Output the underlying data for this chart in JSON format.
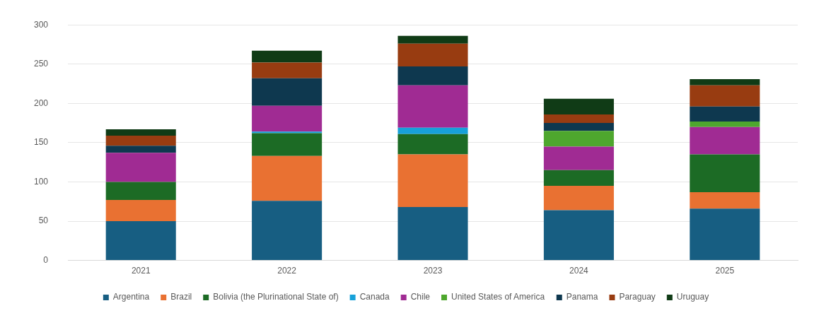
{
  "chart_data": {
    "type": "bar",
    "stacked": true,
    "categories": [
      "2021",
      "2022",
      "2023",
      "2024",
      "2025"
    ],
    "series": [
      {
        "name": "Argentina",
        "color": "#175e82",
        "values": [
          50,
          76,
          68,
          64,
          66
        ]
      },
      {
        "name": "Brazil",
        "color": "#e97132",
        "values": [
          27,
          57,
          67,
          31,
          21
        ]
      },
      {
        "name": "Bolivia (the Plurinational State of)",
        "color": "#1c6b25",
        "values": [
          23,
          29,
          26,
          20,
          48
        ]
      },
      {
        "name": "Canada",
        "color": "#17a1d9",
        "values": [
          0,
          2,
          8,
          0,
          0
        ]
      },
      {
        "name": "Chile",
        "color": "#a02b93",
        "values": [
          37,
          33,
          54,
          30,
          35
        ]
      },
      {
        "name": "United States of America",
        "color": "#4ea72e",
        "values": [
          0,
          0,
          0,
          20,
          7
        ]
      },
      {
        "name": "Panama",
        "color": "#0e384f",
        "values": [
          9,
          35,
          24,
          10,
          19
        ]
      },
      {
        "name": "Paraguay",
        "color": "#983c11",
        "values": [
          13,
          20,
          29,
          11,
          27
        ]
      },
      {
        "name": "Uruguay",
        "color": "#103b16",
        "values": [
          8,
          15,
          10,
          20,
          8
        ]
      }
    ],
    "ylim": [
      0,
      300
    ],
    "yticks": [
      0,
      50,
      100,
      150,
      200,
      250,
      300
    ],
    "grid": "y",
    "legend": "bottom"
  }
}
